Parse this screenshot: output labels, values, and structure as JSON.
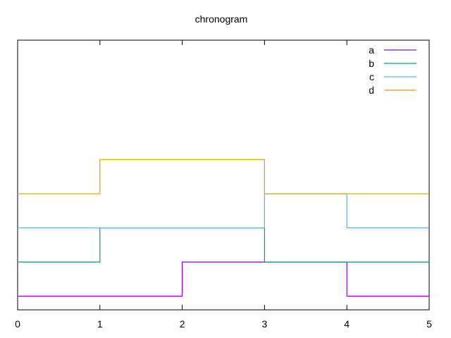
{
  "chart_data": {
    "type": "line",
    "title": "chronogram",
    "xlabel": "",
    "ylabel": "",
    "xlim": [
      0,
      5
    ],
    "ylim": [
      -0.4,
      7.5
    ],
    "xticks": [
      "0",
      "1",
      "2",
      "3",
      "4",
      "5"
    ],
    "grid": false,
    "legend_position": "top-right",
    "step": true,
    "series": [
      {
        "name": "a",
        "color": "#9400d3",
        "offset": 0,
        "x": [
          0,
          2,
          4,
          5
        ],
        "y": [
          0,
          1,
          0,
          0
        ]
      },
      {
        "name": "b",
        "color": "#009e73",
        "offset": 1,
        "x": [
          0,
          1,
          3,
          5
        ],
        "y": [
          0,
          1,
          0,
          0
        ]
      },
      {
        "name": "c",
        "color": "#56b4e9",
        "offset": 2,
        "x": [
          0,
          3,
          4,
          5
        ],
        "y": [
          0,
          1,
          0,
          0
        ]
      },
      {
        "name": "d",
        "color": "#e69f00",
        "offset": 3,
        "x": [
          0,
          1,
          3,
          5
        ],
        "y": [
          0,
          1,
          0,
          0
        ]
      }
    ]
  }
}
